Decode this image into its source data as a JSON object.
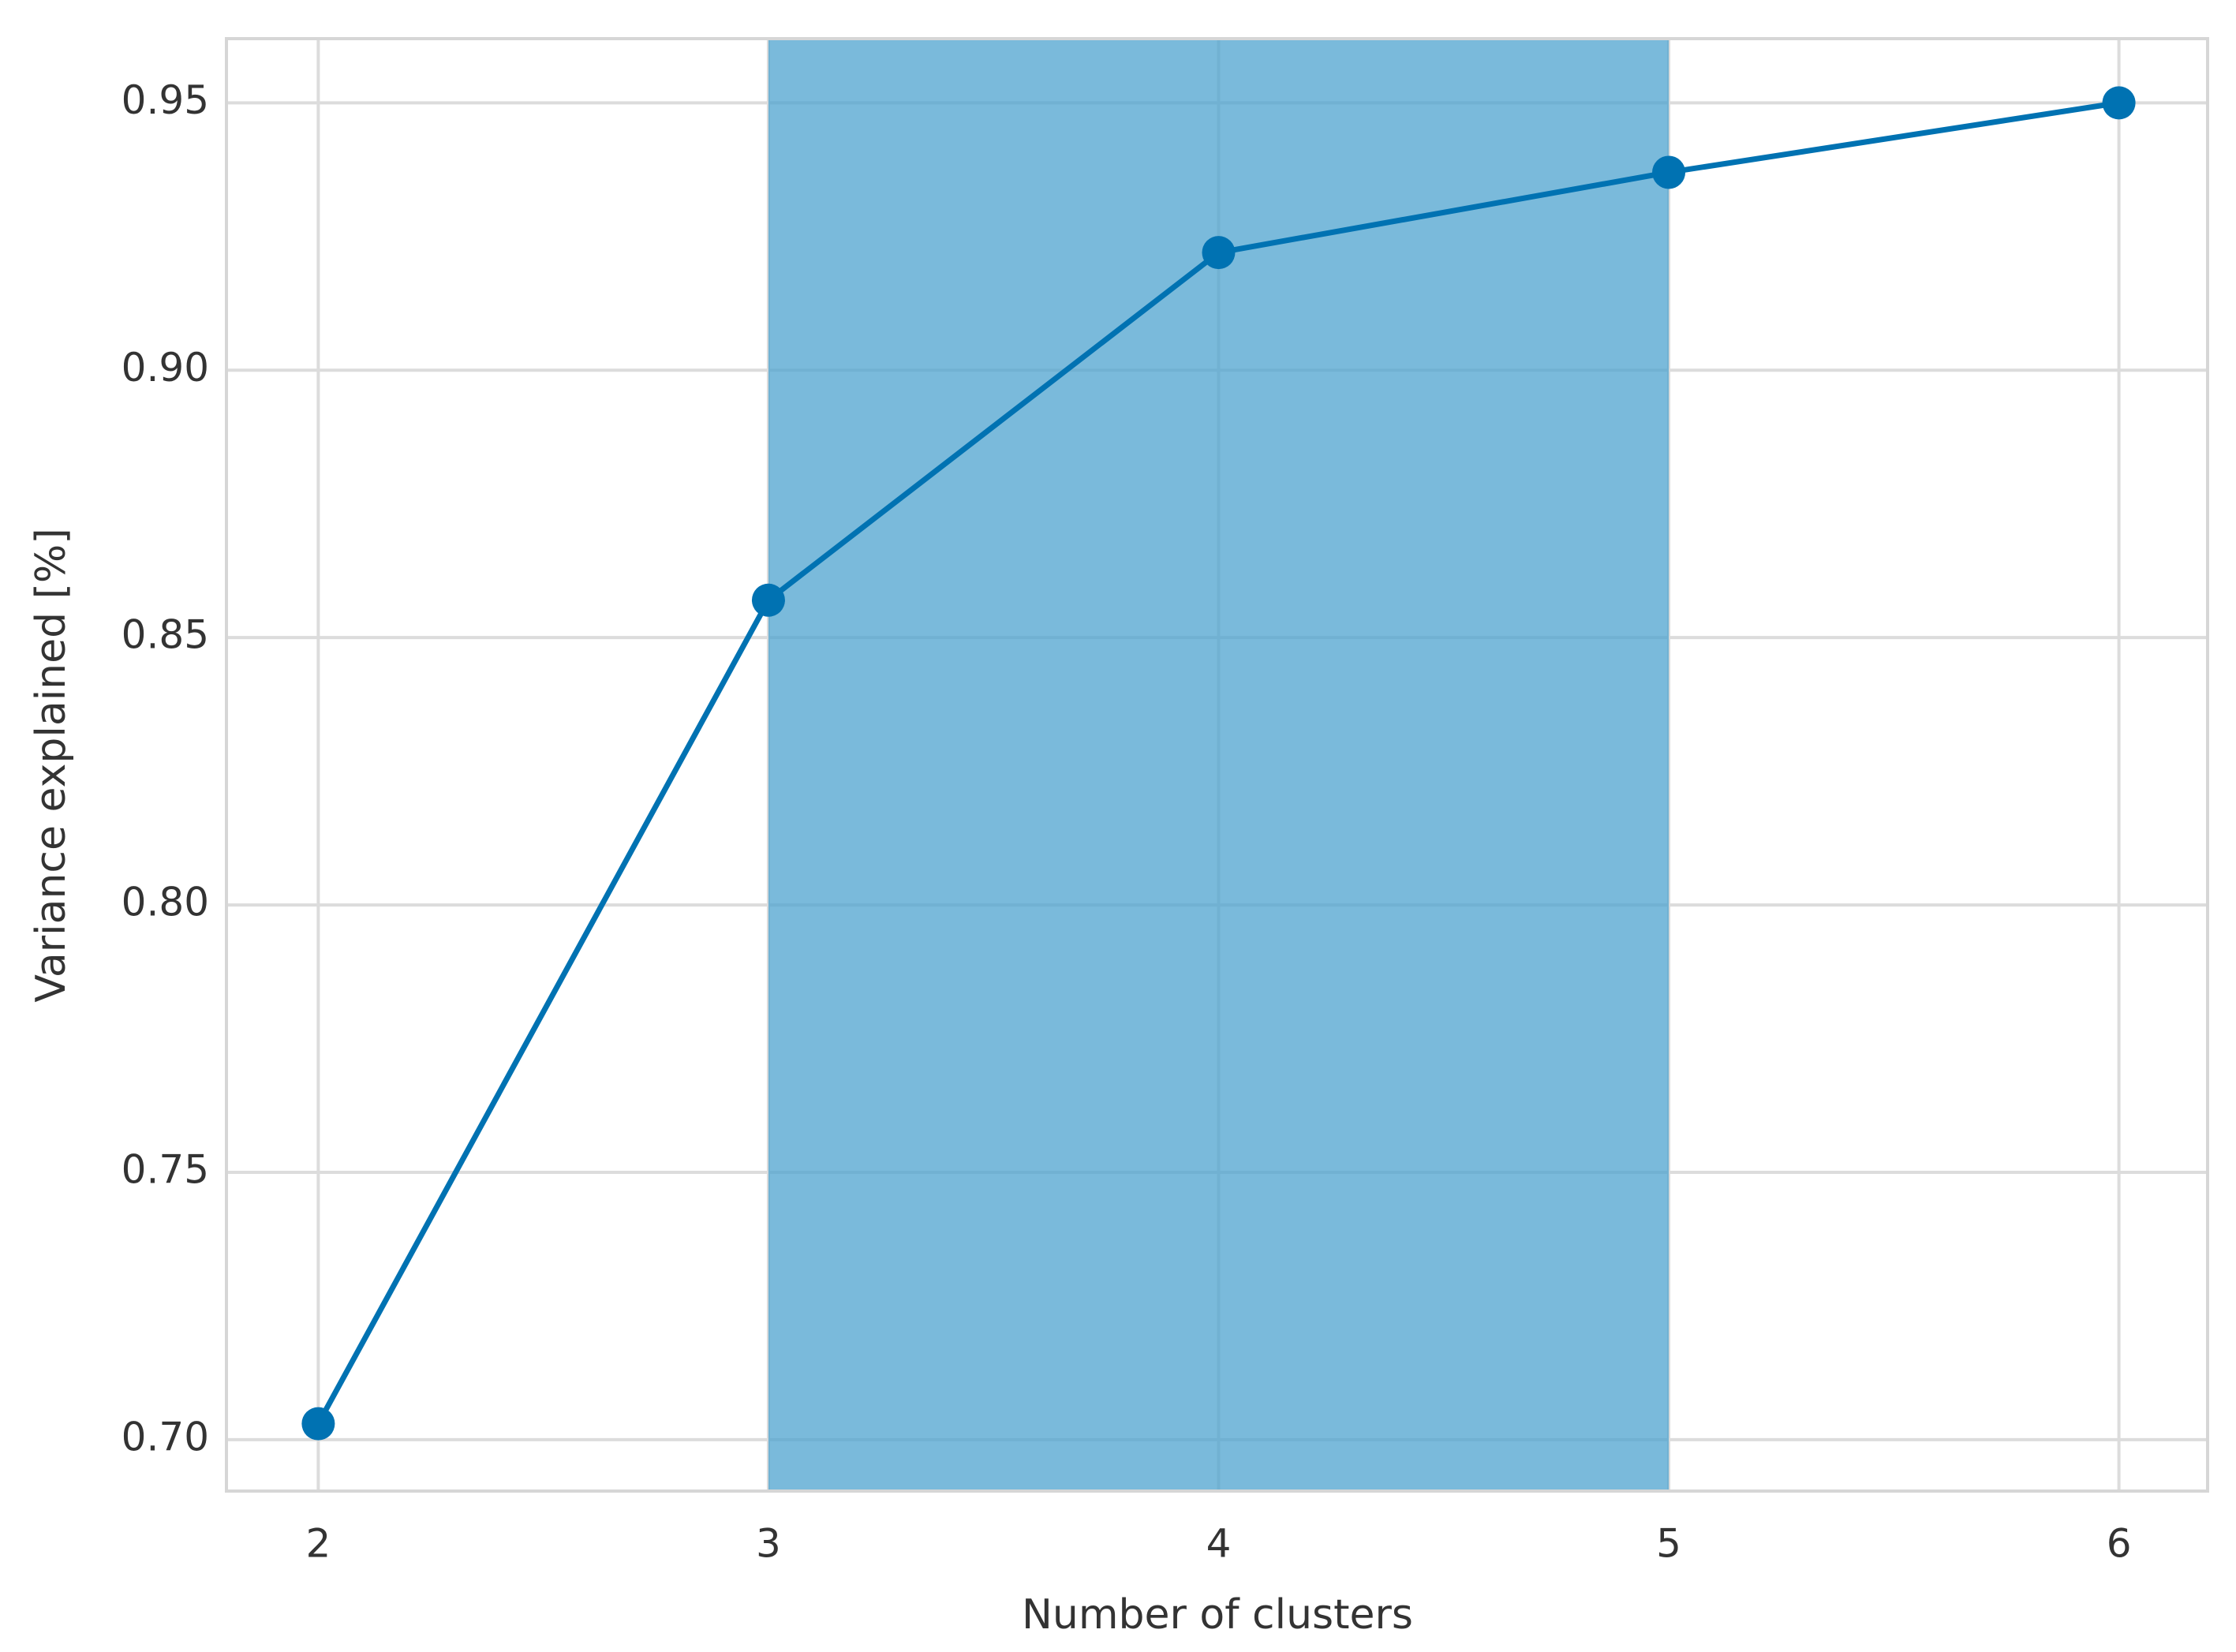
{
  "chart_data": {
    "type": "line",
    "x_label": "Number of clusters",
    "y_label": "Variance explained [%]",
    "x": [
      2,
      3,
      4,
      5,
      6
    ],
    "series": [
      {
        "color": "#0072b2",
        "values": [
          0.703,
          0.857,
          0.922,
          0.937,
          0.95
        ]
      }
    ],
    "span": {
      "x": [
        3,
        5
      ],
      "color": "#4ea3cf",
      "opacity": 0.75
    },
    "xlim": [
      1.796,
      6.197
    ],
    "ylim": [
      0.6904,
      0.962
    ],
    "xticks": [
      2,
      3,
      4,
      5,
      6
    ],
    "yticks": [
      {
        "value": 0.7,
        "label": "0.70"
      },
      0.75,
      {
        "value": 0.8,
        "label": "0.80"
      },
      0.85,
      {
        "value": 0.9,
        "label": "0.90"
      },
      0.95
    ],
    "grid": true
  }
}
